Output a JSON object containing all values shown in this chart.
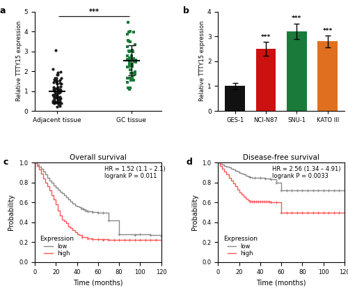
{
  "panel_a": {
    "title": "a",
    "ylabel": "Relative TTTY15 expression",
    "categories": [
      "Adjacent tissue",
      "GC tissue"
    ],
    "ylim": [
      0,
      5
    ],
    "yticks": [
      0,
      1,
      2,
      3,
      4,
      5
    ],
    "adj_color": "#1a1a1a",
    "gc_color": "#1a7a3a",
    "significance": "***"
  },
  "panel_b": {
    "title": "b",
    "ylabel": "Relative TTTY15 expression",
    "categories": [
      "GES-1",
      "NCI-N87",
      "SNU-1",
      "KATO III"
    ],
    "values": [
      1.0,
      2.5,
      3.2,
      2.8
    ],
    "errors": [
      0.12,
      0.28,
      0.32,
      0.24
    ],
    "colors": [
      "#111111",
      "#cc1111",
      "#1a7a3a",
      "#e07020"
    ],
    "ylim": [
      0,
      4
    ],
    "yticks": [
      0,
      1,
      2,
      3,
      4
    ],
    "significance": [
      "",
      "***",
      "***",
      "***"
    ]
  },
  "panel_c": {
    "title": "Overall survival",
    "panel_label": "c",
    "xlabel": "Time (months)",
    "ylabel": "Probability",
    "hr_text": "HR = 1.52 (1.1 – 2.1)\nlogrank P = 0.011",
    "legend_title": "Expression",
    "legend_low": "low",
    "legend_high": "high",
    "color_low": "#888888",
    "color_high": "#ff5555",
    "xlim": [
      0,
      120
    ],
    "ylim": [
      0.0,
      1.0
    ],
    "xticks": [
      0,
      20,
      40,
      60,
      80,
      100,
      120
    ],
    "yticks": [
      0.0,
      0.2,
      0.4,
      0.6,
      0.8,
      1.0
    ],
    "os_low_t": [
      0,
      2,
      4,
      6,
      8,
      10,
      12,
      14,
      16,
      18,
      20,
      22,
      24,
      26,
      28,
      30,
      32,
      34,
      36,
      38,
      40,
      42,
      44,
      46,
      48,
      50,
      55,
      60,
      65,
      70,
      80,
      100,
      110,
      120
    ],
    "os_low_s": [
      1.0,
      0.98,
      0.96,
      0.94,
      0.91,
      0.88,
      0.85,
      0.82,
      0.8,
      0.77,
      0.75,
      0.73,
      0.71,
      0.69,
      0.67,
      0.65,
      0.63,
      0.61,
      0.59,
      0.57,
      0.56,
      0.55,
      0.54,
      0.53,
      0.52,
      0.51,
      0.505,
      0.5,
      0.5,
      0.42,
      0.28,
      0.28,
      0.27,
      0.26
    ],
    "os_low_censor_t": [
      44,
      46,
      48,
      50,
      55,
      60,
      65,
      70,
      80,
      95,
      100,
      110,
      120
    ],
    "os_low_censor_s": [
      0.54,
      0.53,
      0.52,
      0.51,
      0.505,
      0.5,
      0.5,
      0.42,
      0.28,
      0.27,
      0.28,
      0.27,
      0.26
    ],
    "os_high_t": [
      0,
      2,
      4,
      6,
      8,
      10,
      12,
      14,
      16,
      18,
      20,
      22,
      24,
      26,
      28,
      30,
      32,
      34,
      36,
      38,
      40,
      42,
      45,
      50,
      55,
      60,
      70,
      80,
      90,
      100,
      110,
      120
    ],
    "os_high_s": [
      1.0,
      0.97,
      0.93,
      0.89,
      0.84,
      0.8,
      0.76,
      0.72,
      0.67,
      0.63,
      0.58,
      0.52,
      0.47,
      0.43,
      0.41,
      0.39,
      0.36,
      0.34,
      0.32,
      0.3,
      0.28,
      0.27,
      0.25,
      0.24,
      0.23,
      0.23,
      0.22,
      0.22,
      0.22,
      0.22,
      0.22,
      0.22
    ],
    "os_high_censor_t": [
      45,
      50,
      55,
      60,
      65,
      70,
      75,
      80,
      85,
      90,
      95,
      100,
      105,
      110,
      115,
      120
    ],
    "os_high_censor_s": [
      0.25,
      0.24,
      0.23,
      0.23,
      0.22,
      0.22,
      0.22,
      0.22,
      0.22,
      0.22,
      0.22,
      0.22,
      0.22,
      0.22,
      0.22,
      0.22
    ]
  },
  "panel_d": {
    "title": "Disease-free survival",
    "panel_label": "d",
    "xlabel": "Time (months)",
    "ylabel": "Probability",
    "hr_text": "HR = 2.56 (1.34 – 4.91)\nlogrank P = 0.0033",
    "legend_title": "Expression",
    "legend_low": "low",
    "legend_high": "high",
    "color_low": "#888888",
    "color_high": "#ff5555",
    "xlim": [
      0,
      120
    ],
    "ylim": [
      0.0,
      1.0
    ],
    "xticks": [
      0,
      20,
      40,
      60,
      80,
      100,
      120
    ],
    "yticks": [
      0.0,
      0.2,
      0.4,
      0.6,
      0.8,
      1.0
    ],
    "dfs_low_t": [
      0,
      2,
      4,
      6,
      8,
      10,
      12,
      14,
      16,
      18,
      20,
      22,
      24,
      26,
      28,
      30,
      32,
      34,
      36,
      38,
      40,
      45,
      50,
      55,
      60,
      80,
      100,
      120
    ],
    "dfs_low_s": [
      1.0,
      0.99,
      0.98,
      0.97,
      0.96,
      0.95,
      0.94,
      0.93,
      0.92,
      0.91,
      0.9,
      0.89,
      0.88,
      0.87,
      0.86,
      0.855,
      0.85,
      0.85,
      0.85,
      0.85,
      0.85,
      0.84,
      0.83,
      0.8,
      0.72,
      0.72,
      0.72,
      0.72
    ],
    "dfs_low_censor_t": [
      30,
      35,
      40,
      45,
      50,
      55,
      60,
      65,
      70,
      75,
      80,
      85,
      90,
      95,
      100,
      105,
      110,
      115,
      120
    ],
    "dfs_low_censor_s": [
      0.855,
      0.85,
      0.85,
      0.84,
      0.83,
      0.8,
      0.72,
      0.72,
      0.72,
      0.72,
      0.72,
      0.72,
      0.72,
      0.72,
      0.72,
      0.72,
      0.72,
      0.72,
      0.72
    ],
    "dfs_high_t": [
      0,
      2,
      4,
      6,
      8,
      10,
      12,
      14,
      16,
      18,
      20,
      22,
      24,
      26,
      28,
      30,
      32,
      34,
      36,
      38,
      40,
      42,
      44,
      46,
      48,
      50,
      55,
      60,
      80,
      100,
      120
    ],
    "dfs_high_s": [
      1.0,
      0.97,
      0.94,
      0.91,
      0.88,
      0.85,
      0.82,
      0.79,
      0.76,
      0.73,
      0.7,
      0.68,
      0.66,
      0.64,
      0.62,
      0.61,
      0.61,
      0.61,
      0.61,
      0.61,
      0.61,
      0.61,
      0.61,
      0.61,
      0.61,
      0.6,
      0.6,
      0.5,
      0.5,
      0.5,
      0.5
    ],
    "dfs_high_censor_t": [
      30,
      32,
      34,
      36,
      38,
      40,
      42,
      44,
      46,
      48,
      50,
      55,
      60,
      65,
      70,
      75,
      80,
      85,
      90,
      95,
      100,
      105,
      110,
      115,
      120
    ],
    "dfs_high_censor_s": [
      0.61,
      0.61,
      0.61,
      0.61,
      0.61,
      0.61,
      0.61,
      0.61,
      0.61,
      0.61,
      0.6,
      0.6,
      0.5,
      0.5,
      0.5,
      0.5,
      0.5,
      0.5,
      0.5,
      0.5,
      0.5,
      0.5,
      0.5,
      0.5,
      0.5
    ]
  },
  "fig_background": "#ffffff"
}
